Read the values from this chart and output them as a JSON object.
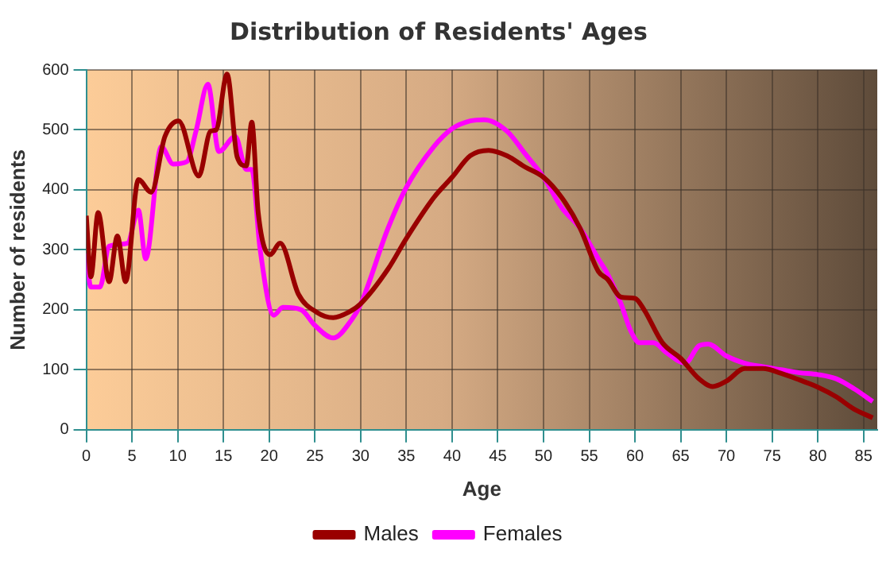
{
  "chart_data": {
    "type": "line",
    "title": "Distribution of Residents' Ages",
    "xlabel": "Age",
    "ylabel": "Number of residents",
    "xlim": [
      0,
      86.5
    ],
    "xticks": [
      0,
      5,
      10,
      15,
      20,
      25,
      30,
      35,
      40,
      45,
      50,
      55,
      60,
      65,
      70,
      75,
      80,
      85
    ],
    "ylim": [
      0,
      600
    ],
    "yticks": [
      0,
      100,
      200,
      300,
      400,
      500,
      600
    ],
    "grid": true,
    "legend": "bottom",
    "marker": "none",
    "line_style": "solid",
    "series": [
      {
        "name": "Males",
        "color": "#990000",
        "x": [
          0,
          0.5,
          1.3,
          2.5,
          3.4,
          4.3,
          5.7,
          7.1,
          8.6,
          10.1,
          12.3,
          13.6,
          14.2,
          15.4,
          16.5,
          17.5,
          18.1,
          18.8,
          20.1,
          21.2,
          23.2,
          25.2,
          27,
          28.7,
          30,
          33,
          35,
          38,
          40,
          42,
          44,
          46,
          48,
          50,
          52,
          54,
          56,
          57,
          58.5,
          60,
          61,
          63,
          65,
          67,
          68.5,
          70,
          72,
          74,
          76,
          78,
          80,
          82,
          84,
          86
        ],
        "values": [
          357,
          255,
          362,
          247,
          323,
          247,
          417,
          396,
          489,
          515,
          423,
          498,
          500,
          593,
          455,
          440,
          513,
          362,
          292,
          311,
          226,
          196,
          187,
          196,
          210,
          268,
          319,
          387,
          421,
          457,
          466,
          457,
          438,
          421,
          387,
          336,
          264,
          251,
          221,
          219,
          200,
          145,
          119,
          85,
          72,
          81,
          102,
          102,
          94,
          83,
          71,
          55,
          34,
          20
        ]
      },
      {
        "name": "Females",
        "color": "#ff00ff",
        "x": [
          0,
          0.5,
          1.5,
          2.5,
          4.5,
          5.7,
          6.5,
          8.2,
          9.5,
          11,
          12,
          13.3,
          14.5,
          16.3,
          17.5,
          18.1,
          19,
          20.5,
          21.5,
          23.5,
          25,
          27,
          29,
          30,
          33,
          35,
          38,
          40,
          42,
          43.5,
          46,
          48,
          50,
          52,
          54,
          56,
          57,
          58.5,
          59.5,
          60.5,
          62,
          63.5,
          65.5,
          67,
          68,
          70,
          72,
          74,
          76,
          78,
          80,
          82,
          84,
          86
        ],
        "values": [
          294,
          238,
          238,
          306,
          311,
          366,
          285,
          472,
          443,
          447,
          498,
          576,
          464,
          489,
          434,
          434,
          302,
          191,
          204,
          200,
          174,
          153,
          183,
          209,
          336,
          404,
          472,
          502,
          515,
          517,
          498,
          460,
          421,
          370,
          336,
          285,
          260,
          209,
          166,
          145,
          145,
          128,
          111,
          140,
          143,
          123,
          111,
          105,
          100,
          95,
          92,
          85,
          68,
          47
        ]
      }
    ]
  }
}
